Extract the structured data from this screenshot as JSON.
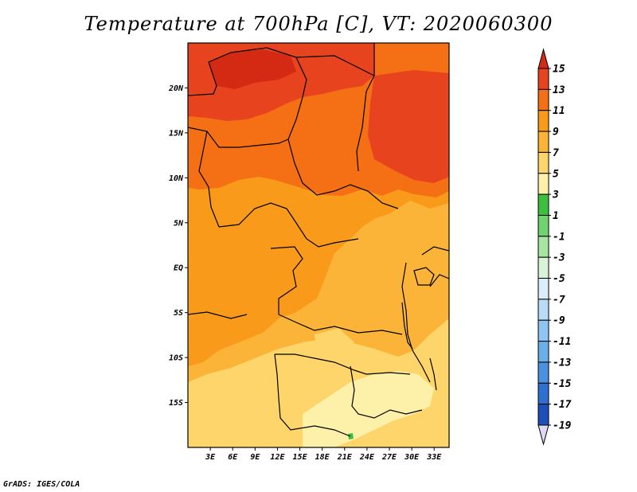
{
  "title": "Temperature at 700hPa [C], VT: 2020060300",
  "credit": "GrADS: IGES/COLA",
  "map": {
    "lon_range": [
      0,
      35
    ],
    "lat_range": [
      -20,
      25
    ],
    "lon_ticks": [
      "3E",
      "6E",
      "9E",
      "12E",
      "15E",
      "18E",
      "21E",
      "24E",
      "27E",
      "30E",
      "33E"
    ],
    "lat_ticks": [
      "20N",
      "15N",
      "10N",
      "5N",
      "EQ",
      "5S",
      "10S",
      "15S"
    ],
    "field": "Temperature at 700hPa",
    "units": "C"
  },
  "colorbar": {
    "labels": [
      "15",
      "13",
      "11",
      "9",
      "7",
      "5",
      "3",
      "1",
      "-1",
      "-3",
      "-5",
      "-7",
      "-9",
      "-11",
      "-13",
      "-15",
      "-17",
      "-19"
    ],
    "colors": [
      "#e8431f",
      "#f56f14",
      "#f99a1b",
      "#fbb437",
      "#fdd56a",
      "#fdf0a8",
      "#3fbf3f",
      "#6fd46f",
      "#a6e6a0",
      "#d8f3d8",
      "#dbeefb",
      "#b8dcf7",
      "#8fc5f2",
      "#6aaeea",
      "#4c91e0",
      "#2f6fd0",
      "#1e4fb8",
      "#16309a",
      "#0b1470"
    ],
    "top_color": "#d42a14",
    "bottom_color": "#e0d8f4"
  }
}
